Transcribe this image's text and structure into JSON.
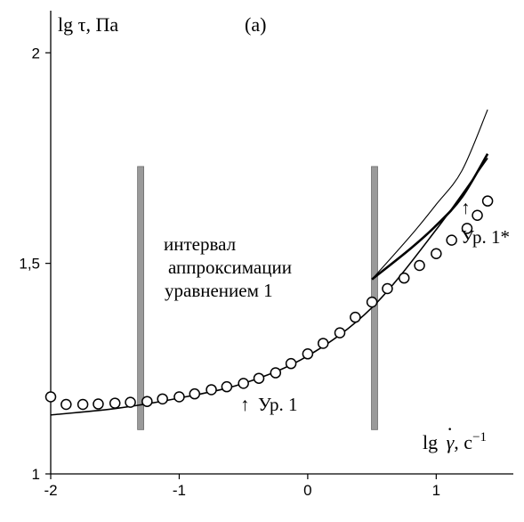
{
  "chart_data": {
    "type": "scatter",
    "panel_label": "(a)",
    "ylabel": "lg τ, Па",
    "xlabel_parts": {
      "lg": "lg",
      "gamma": "γ",
      "dot": "·",
      "unit": ", c",
      "exp": "−1"
    },
    "xlim": [
      -2,
      1.6
    ],
    "ylim": [
      1,
      2.1
    ],
    "xticks": [
      -2,
      -1,
      0,
      1
    ],
    "xtick_labels": [
      "-2",
      "-1",
      "0",
      "1"
    ],
    "yticks": [
      1,
      1.5,
      2
    ],
    "ytick_labels": [
      "1",
      "1,5",
      "2"
    ],
    "grid": false,
    "series": [
      {
        "kind": "markers",
        "x": [
          -2.0,
          -1.88,
          -1.75,
          -1.63,
          -1.5,
          -1.38,
          -1.25,
          -1.13,
          -1.0,
          -0.88,
          -0.75,
          -0.63,
          -0.5,
          -0.38,
          -0.25,
          -0.13,
          0.0,
          0.12,
          0.25,
          0.37,
          0.5,
          0.62,
          0.75,
          0.87,
          1.0,
          1.12,
          1.24,
          1.32,
          1.4
        ],
        "y": [
          1.183,
          1.165,
          1.165,
          1.166,
          1.168,
          1.17,
          1.172,
          1.178,
          1.183,
          1.19,
          1.2,
          1.207,
          1.215,
          1.227,
          1.24,
          1.262,
          1.285,
          1.31,
          1.335,
          1.372,
          1.408,
          1.44,
          1.465,
          1.495,
          1.523,
          1.555,
          1.583,
          1.614,
          1.648
        ]
      },
      {
        "kind": "curve-ur1",
        "x": [
          -2.0,
          -1.5,
          -1.0,
          -0.5,
          0.0,
          0.5,
          1.0,
          1.4
        ],
        "y": [
          1.14,
          1.155,
          1.18,
          1.215,
          1.28,
          1.395,
          1.58,
          1.75
        ]
      },
      {
        "kind": "curve-ur1-star",
        "x": [
          0.5,
          0.8,
          1.0,
          1.2,
          1.4
        ],
        "y": [
          1.462,
          1.535,
          1.59,
          1.657,
          1.76
        ]
      },
      {
        "kind": "curve-thin",
        "x": [
          0.5,
          0.8,
          1.0,
          1.2,
          1.4
        ],
        "y": [
          1.462,
          1.565,
          1.64,
          1.72,
          1.865
        ]
      }
    ],
    "vertical_bands": [
      -1.3,
      0.52
    ],
    "annotations": {
      "interval_line1": "интервал",
      "interval_line2": "аппроксимации",
      "interval_line3": "уравнением 1",
      "ur1_arrow": "↑",
      "ur1_label": "Ур. 1",
      "ur1_star_arrow": "↑",
      "ur1_star_label": "Ур. 1*"
    }
  }
}
